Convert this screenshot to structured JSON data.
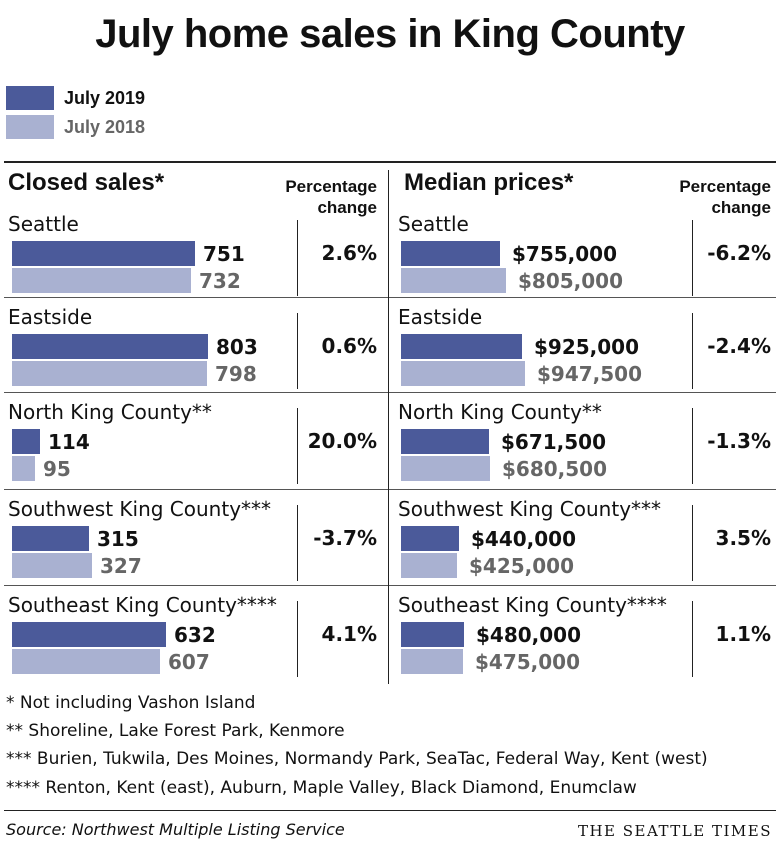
{
  "title": "July home sales in King County",
  "legend": [
    {
      "label": "July 2019",
      "color": "#4b5a9a"
    },
    {
      "label": "July 2018",
      "color": "#a9b1d1"
    }
  ],
  "colors": {
    "current": "#4b5a9a",
    "previous": "#a9b1d1"
  },
  "panels": {
    "sales": {
      "title": "Closed sales*",
      "pct_header": [
        "Percentage",
        "change"
      ]
    },
    "prices": {
      "title": "Median prices*",
      "pct_header": [
        "Percentage",
        "change"
      ]
    }
  },
  "chart_data": [
    {
      "type": "bar",
      "title": "Closed sales*",
      "categories": [
        "Seattle",
        "Eastside",
        "North King County**",
        "Southwest King County***",
        "Southeast King County****"
      ],
      "series": [
        {
          "name": "July 2019",
          "values": [
            751,
            803,
            114,
            315,
            632
          ]
        },
        {
          "name": "July 2018",
          "values": [
            732,
            798,
            95,
            327,
            607
          ]
        }
      ],
      "value_labels": {
        "July 2019": [
          "751",
          "803",
          "114",
          "315",
          "632"
        ],
        "July 2018": [
          "732",
          "798",
          "95",
          "327",
          "607"
        ]
      },
      "percent_change": [
        "2.6%",
        "0.6%",
        "20.0%",
        "-3.7%",
        "4.1%"
      ]
    },
    {
      "type": "bar",
      "title": "Median prices*",
      "categories": [
        "Seattle",
        "Eastside",
        "North King County**",
        "Southwest King County***",
        "Southeast King County****"
      ],
      "series": [
        {
          "name": "July 2019",
          "values": [
            755000,
            925000,
            671500,
            440000,
            480000
          ]
        },
        {
          "name": "July 2018",
          "values": [
            805000,
            947500,
            680500,
            425000,
            475000
          ]
        }
      ],
      "value_labels": {
        "July 2019": [
          "$755,000",
          "$925,000",
          "$671,500",
          "$440,000",
          "$480,000"
        ],
        "July 2018": [
          "$805,000",
          "$947,500",
          "$680,500",
          "$425,000",
          "$475,000"
        ]
      },
      "percent_change": [
        "-6.2%",
        "-2.4%",
        "-1.3%",
        "3.5%",
        "1.1%"
      ]
    }
  ],
  "footnotes": [
    "* Not including Vashon Island",
    "** Shoreline, Lake Forest Park, Kenmore",
    "*** Burien, Tukwila, Des Moines, Normandy Park, SeaTac, Federal Way, Kent (west)",
    "**** Renton, Kent (east), Auburn, Maple Valley, Black Diamond, Enumclaw"
  ],
  "source": "Source: Northwest Multiple Listing Service",
  "brand": "THE SEATTLE TIMES"
}
